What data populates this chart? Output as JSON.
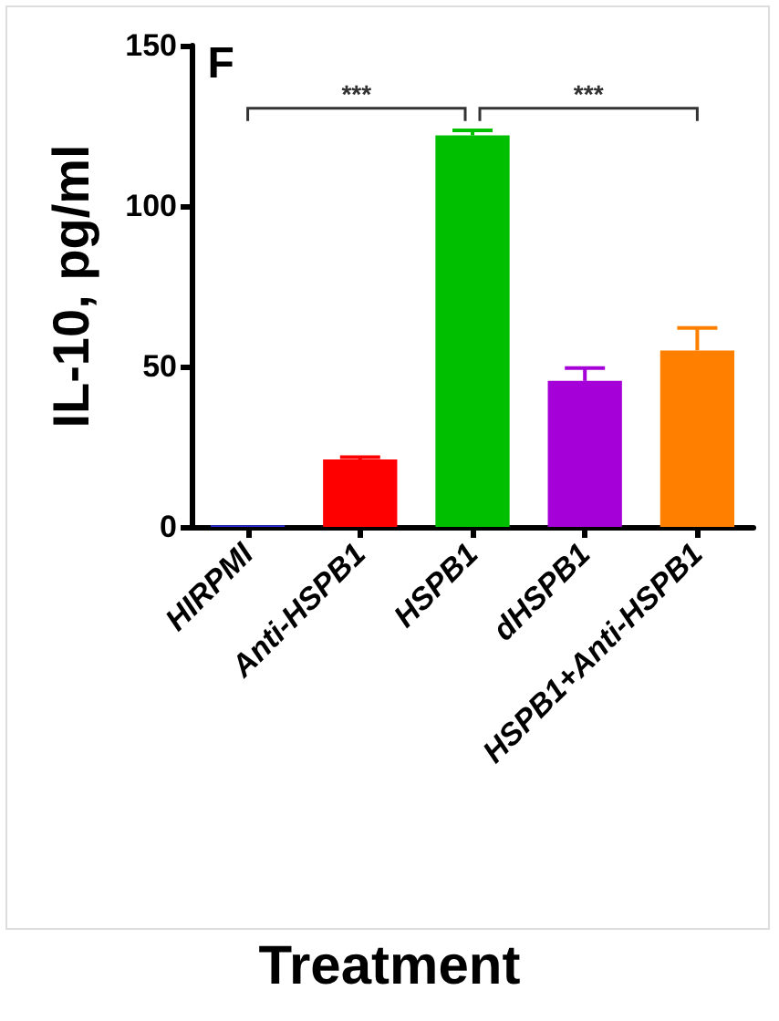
{
  "chart_data": {
    "type": "bar",
    "xlabel": "Treatment",
    "ylabel": "IL-10, pg/ml",
    "categories": [
      "HIRPMI",
      "Anti-HSPB1",
      "HSPB1",
      "dHSPB1",
      "HSPB1+Anti-HSPB1"
    ],
    "values": [
      0.5,
      21,
      122,
      45.5,
      55
    ],
    "colors": [
      "#2b2bd9",
      "#ff0000",
      "#00bf00",
      "#a600d9",
      "#ff8000"
    ],
    "errors": [
      null,
      [
        21,
        21.7
      ],
      [
        122,
        123.6
      ],
      [
        45.5,
        49.5
      ],
      [
        55,
        62
      ]
    ],
    "ylim": [
      0,
      150
    ],
    "yticks": [
      0,
      50,
      100,
      150
    ],
    "grid": false,
    "annotations": [
      "F",
      "***",
      "***"
    ]
  }
}
